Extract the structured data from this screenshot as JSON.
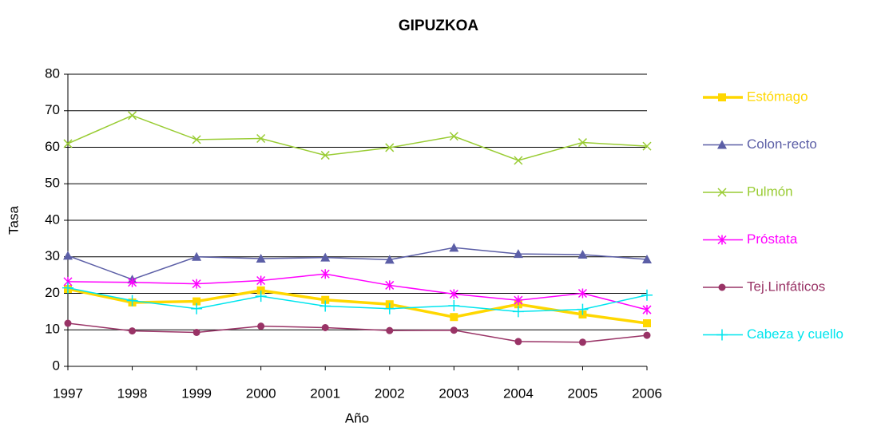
{
  "chart_data": {
    "type": "line",
    "title": "GIPUZKOA",
    "x_label": "Año",
    "y_label": "Tasa",
    "categories": [
      "1997",
      "1998",
      "1999",
      "2000",
      "2001",
      "2002",
      "2003",
      "2004",
      "2005",
      "2006"
    ],
    "series": [
      {
        "name": "Estómago",
        "color": "#ffd700",
        "marker": "square",
        "values": [
          21.2,
          17.5,
          17.8,
          20.8,
          18.2,
          17.0,
          13.5,
          17.0,
          14.2,
          11.8
        ]
      },
      {
        "name": "Colon-recto",
        "color": "#5b5ea6",
        "marker": "triangle",
        "values": [
          30.3,
          23.8,
          30.0,
          29.5,
          29.8,
          29.2,
          32.5,
          30.8,
          30.6,
          29.3
        ]
      },
      {
        "name": "Pulmón",
        "color": "#99cc33",
        "marker": "x",
        "values": [
          61.0,
          68.7,
          62.1,
          62.4,
          57.8,
          59.9,
          63.0,
          56.4,
          61.3,
          60.3
        ]
      },
      {
        "name": "Próstata",
        "color": "#ff00ff",
        "marker": "asterisk",
        "values": [
          23.2,
          23.0,
          22.6,
          23.5,
          25.3,
          22.2,
          19.8,
          18.1,
          20.0,
          15.5
        ]
      },
      {
        "name": "Tej.Linfáticos",
        "color": "#993366",
        "marker": "circle",
        "values": [
          11.8,
          9.7,
          9.3,
          11.0,
          10.6,
          9.8,
          9.9,
          6.8,
          6.6,
          8.5
        ]
      },
      {
        "name": "Cabeza y cuello",
        "color": "#00e5ee",
        "marker": "plus",
        "values": [
          21.5,
          18.0,
          15.8,
          19.2,
          16.5,
          15.8,
          16.6,
          15.0,
          15.6,
          19.5
        ]
      }
    ],
    "ylim": [
      0,
      80
    ],
    "yticks": [
      0,
      10,
      20,
      30,
      40,
      50,
      60,
      70,
      80
    ],
    "grid": true,
    "legend": "right"
  }
}
